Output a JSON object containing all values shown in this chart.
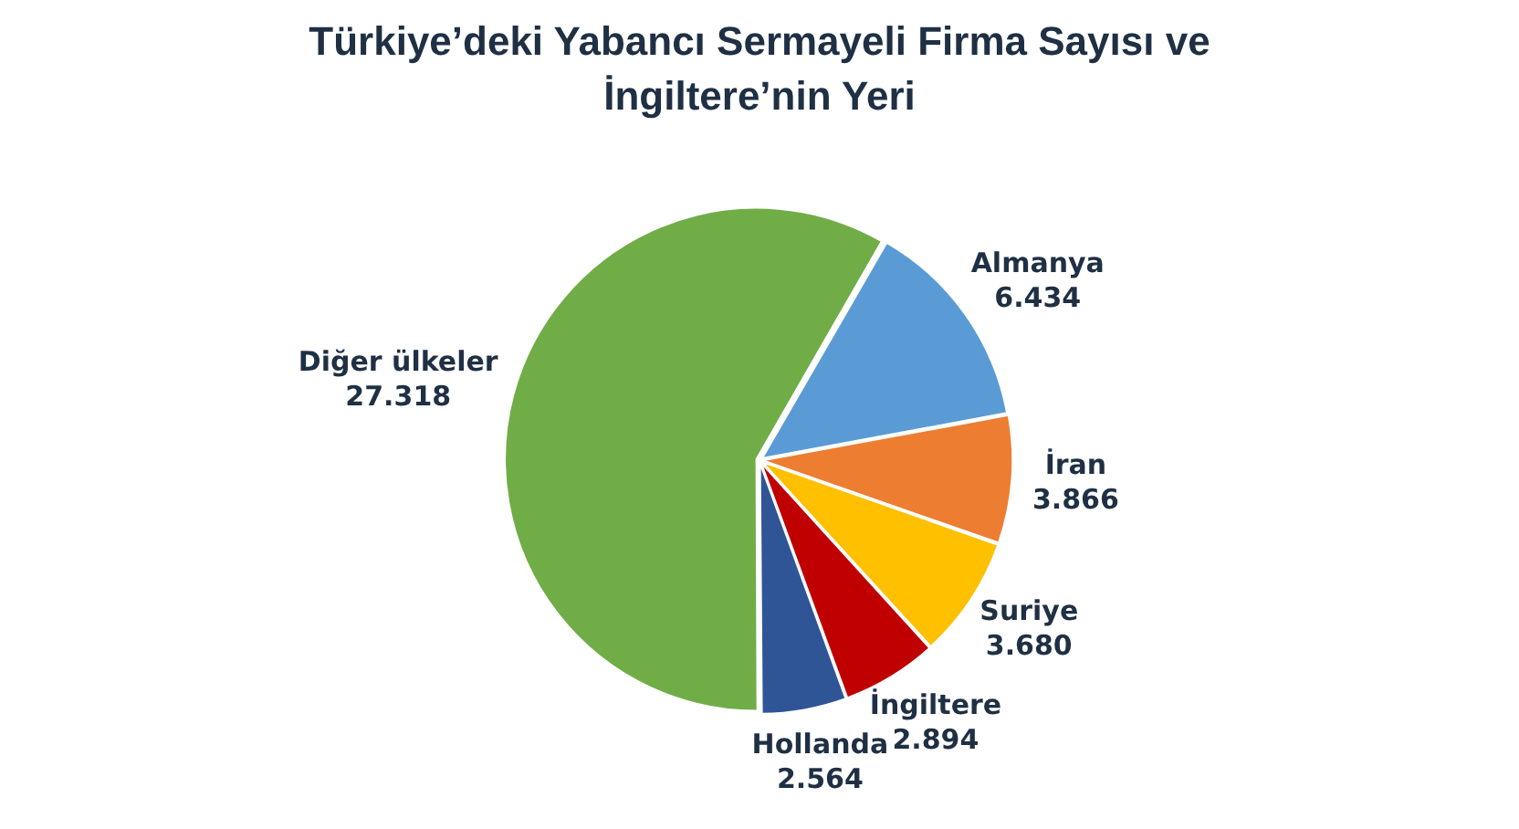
{
  "chart_data": {
    "type": "pie",
    "title": "Türkiye’deki Yabancı Sermayeli Firma Sayısı ve İngiltere’nin Yeri",
    "categories": [
      "Almanya",
      "İran",
      "Suriye",
      "İngiltere",
      "Hollanda",
      "Diğer ülkeler"
    ],
    "values": [
      6434,
      3866,
      3680,
      2894,
      2564,
      27318
    ],
    "value_labels": [
      "6.434",
      "3.866",
      "3.680",
      "2.894",
      "2.564",
      "27.318"
    ],
    "colors": [
      "#5b9bd5",
      "#ed7d31",
      "#ffc000",
      "#c00000",
      "#2f5597",
      "#70ad47"
    ]
  }
}
